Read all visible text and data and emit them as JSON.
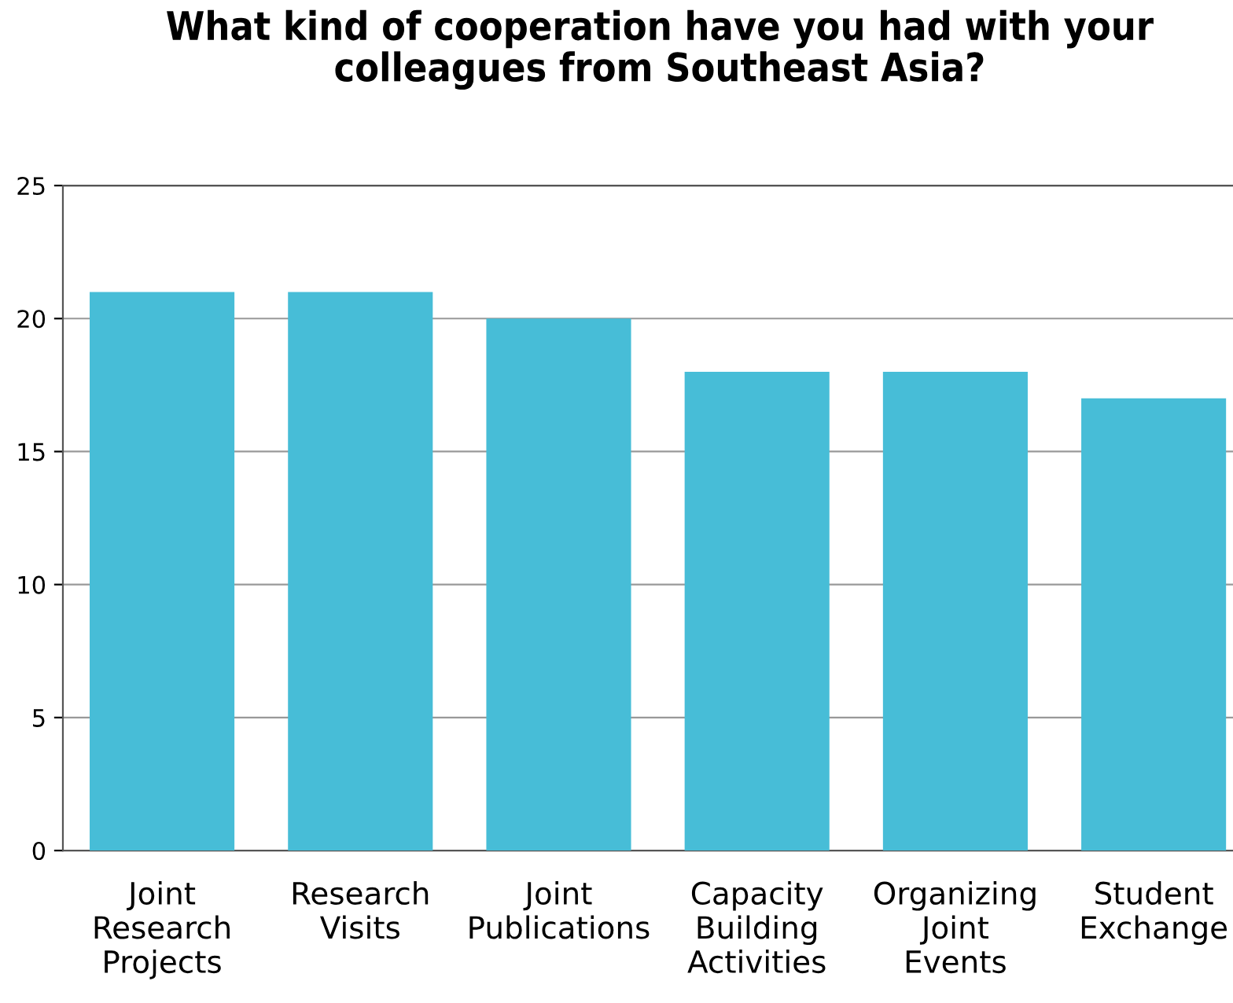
{
  "chart_data": {
    "type": "bar",
    "title": "What kind of cooperation have you had with your\ncolleagues from Southeast Asia?",
    "categories": [
      "Joint\nResearch\nProjects",
      "Research\nVisits",
      "Joint\nPublications",
      "Capacity\nBuilding\nActivities",
      "Organizing\nJoint\nEvents",
      "Student\nExchange"
    ],
    "values": [
      21,
      21,
      20,
      18,
      18,
      17
    ],
    "color": "#47bdd7",
    "ylim": [
      0,
      25
    ],
    "yticks": [
      0,
      5,
      10,
      15,
      20,
      25
    ],
    "grid": "y",
    "legend": false
  }
}
